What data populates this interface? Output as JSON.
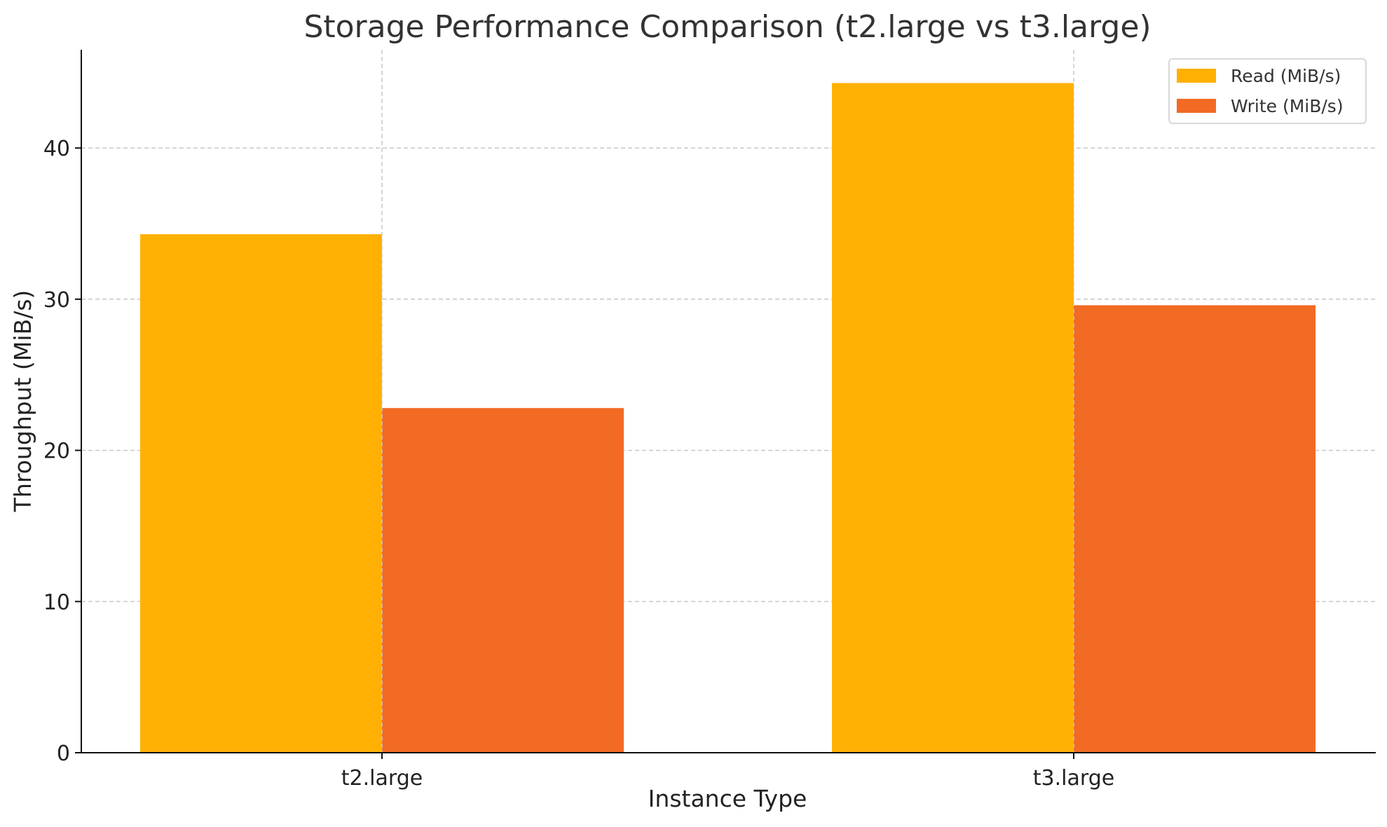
{
  "chart_data": {
    "type": "bar",
    "title": "Storage Performance Comparison (t2.large vs t3.large)",
    "xlabel": "Instance Type",
    "ylabel": "Throughput (MiB/s)",
    "categories": [
      "t2.large",
      "t3.large"
    ],
    "series": [
      {
        "name": "Read (MiB/s)",
        "values": [
          34.3,
          44.3
        ],
        "color": "#FFB003"
      },
      {
        "name": "Write (MiB/s)",
        "values": [
          22.8,
          29.6
        ],
        "color": "#F26A24"
      }
    ],
    "ylim": [
      0,
      46.5
    ],
    "yticks": [
      0,
      10,
      20,
      30,
      40
    ],
    "grid": true,
    "legend_position": "top-right"
  }
}
